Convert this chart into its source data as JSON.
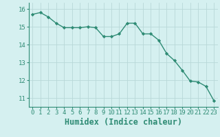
{
  "x": [
    0,
    1,
    2,
    3,
    4,
    5,
    6,
    7,
    8,
    9,
    10,
    11,
    12,
    13,
    14,
    15,
    16,
    17,
    18,
    19,
    20,
    21,
    22,
    23
  ],
  "y": [
    15.7,
    15.8,
    15.55,
    15.2,
    14.95,
    14.95,
    14.95,
    15.0,
    14.95,
    14.45,
    14.45,
    14.6,
    15.2,
    15.2,
    14.6,
    14.6,
    14.25,
    13.5,
    13.1,
    12.55,
    11.95,
    11.9,
    11.65,
    10.85
  ],
  "line_color": "#2e8b74",
  "marker": "D",
  "marker_size": 2.2,
  "bg_color": "#d5f0f0",
  "grid_color_major": "#b8d8d8",
  "grid_color_minor": "#c8e8e8",
  "xlabel": "Humidex (Indice chaleur)",
  "xlim": [
    -0.5,
    23.5
  ],
  "ylim": [
    10.5,
    16.35
  ],
  "yticks": [
    11,
    12,
    13,
    14,
    15,
    16
  ],
  "xticks": [
    0,
    1,
    2,
    3,
    4,
    5,
    6,
    7,
    8,
    9,
    10,
    11,
    12,
    13,
    14,
    15,
    16,
    17,
    18,
    19,
    20,
    21,
    22,
    23
  ],
  "tick_fontsize": 6.5,
  "xlabel_fontsize": 8.5,
  "line_width": 1.0,
  "tick_color": "#2e8b74",
  "spine_color": "#2e8b74"
}
